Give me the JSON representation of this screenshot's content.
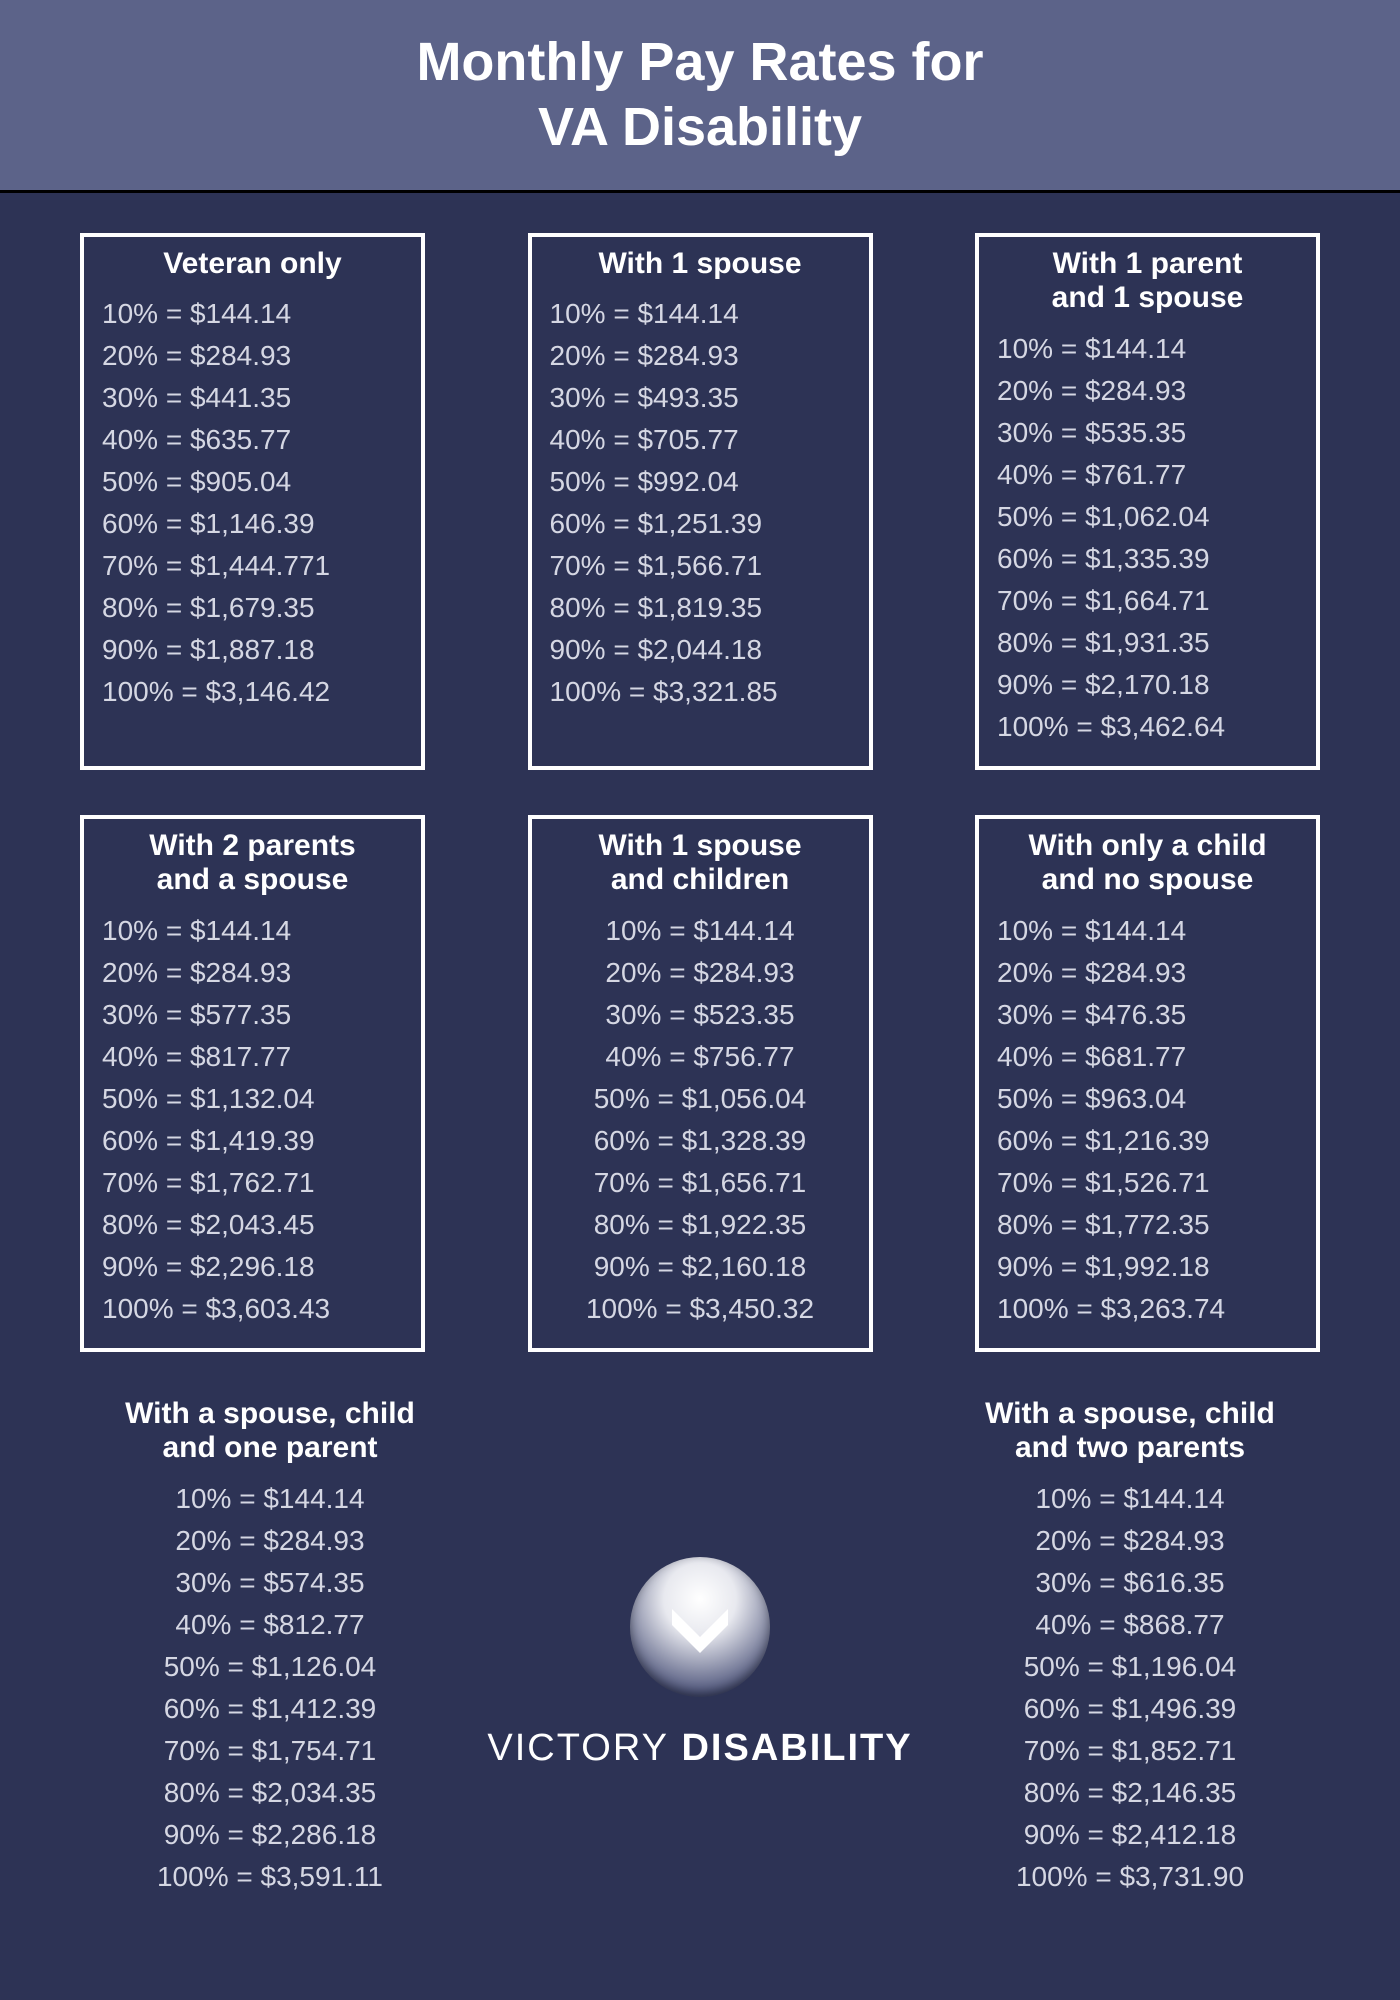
{
  "colors": {
    "page_bg": "#2d3355",
    "header_bg": "#5c6389",
    "header_border": "#000000",
    "title_color": "#ffffff",
    "card_border": "#ffffff",
    "text_color": "#d5d7e3"
  },
  "header": {
    "line1": "Monthly Pay Rates for",
    "line2": "VA Disability"
  },
  "percents": [
    "10%",
    "20%",
    "30%",
    "40%",
    "50%",
    "60%",
    "70%",
    "80%",
    "90%",
    "100%"
  ],
  "cards": [
    {
      "id": "veteran-only",
      "title": "Veteran only",
      "bordered": true,
      "amounts": [
        "$144.14",
        "$284.93",
        "$441.35",
        "$635.77",
        "$905.04",
        "$1,146.39",
        "$1,444.771",
        "$1,679.35",
        "$1,887.18",
        "$3,146.42"
      ]
    },
    {
      "id": "with-1-spouse",
      "title": "With 1 spouse",
      "bordered": true,
      "amounts": [
        "$144.14",
        "$284.93",
        "$493.35",
        "$705.77",
        "$992.04",
        "$1,251.39",
        "$1,566.71",
        "$1,819.35",
        "$2,044.18",
        "$3,321.85"
      ]
    },
    {
      "id": "with-1-parent-1-spouse",
      "title": "With 1 parent\nand 1 spouse",
      "bordered": true,
      "amounts": [
        "$144.14",
        "$284.93",
        "$535.35",
        "$761.77",
        "$1,062.04",
        "$1,335.39",
        "$1,664.71",
        "$1,931.35",
        "$2,170.18",
        "$3,462.64"
      ]
    },
    {
      "id": "with-2-parents-spouse",
      "title": "With 2 parents\nand a spouse",
      "bordered": true,
      "amounts": [
        "$144.14",
        "$284.93",
        "$577.35",
        "$817.77",
        "$1,132.04",
        "$1,419.39",
        "$1,762.71",
        "$2,043.45",
        "$2,296.18",
        "$3,603.43"
      ]
    },
    {
      "id": "with-1-spouse-children",
      "title": "With 1 spouse\nand children",
      "bordered": true,
      "centered": true,
      "amounts": [
        "$144.14",
        "$284.93",
        "$523.35",
        "$756.77",
        "$1,056.04",
        "$1,328.39",
        "$1,656.71",
        "$1,922.35",
        "$2,160.18",
        "$3,450.32"
      ]
    },
    {
      "id": "child-no-spouse",
      "title": "With only a child\nand no spouse",
      "bordered": true,
      "amounts": [
        "$144.14",
        "$284.93",
        "$476.35",
        "$681.77",
        "$963.04",
        "$1,216.39",
        "$1,526.71",
        "$1,772.35",
        "$1,992.18",
        "$3,263.74"
      ]
    },
    {
      "id": "spouse-child-1-parent",
      "title": "With a spouse, child\nand one parent",
      "bordered": false,
      "centered": true,
      "amounts": [
        "$144.14",
        "$284.93",
        "$574.35",
        "$812.77",
        "$1,126.04",
        "$1,412.39",
        "$1,754.71",
        "$2,034.35",
        "$2,286.18",
        "$3,591.11"
      ]
    },
    {
      "id": "spouse-child-2-parents",
      "title": "With a spouse, child\nand two parents",
      "bordered": false,
      "centered": true,
      "amounts": [
        "$144.14",
        "$284.93",
        "$616.35",
        "$868.77",
        "$1,196.04",
        "$1,496.39",
        "$1,852.71",
        "$2,146.35",
        "$2,412.18",
        "$3,731.90"
      ]
    }
  ],
  "logo": {
    "name_light": "VICTORY",
    "name_bold": "DISABILITY"
  }
}
